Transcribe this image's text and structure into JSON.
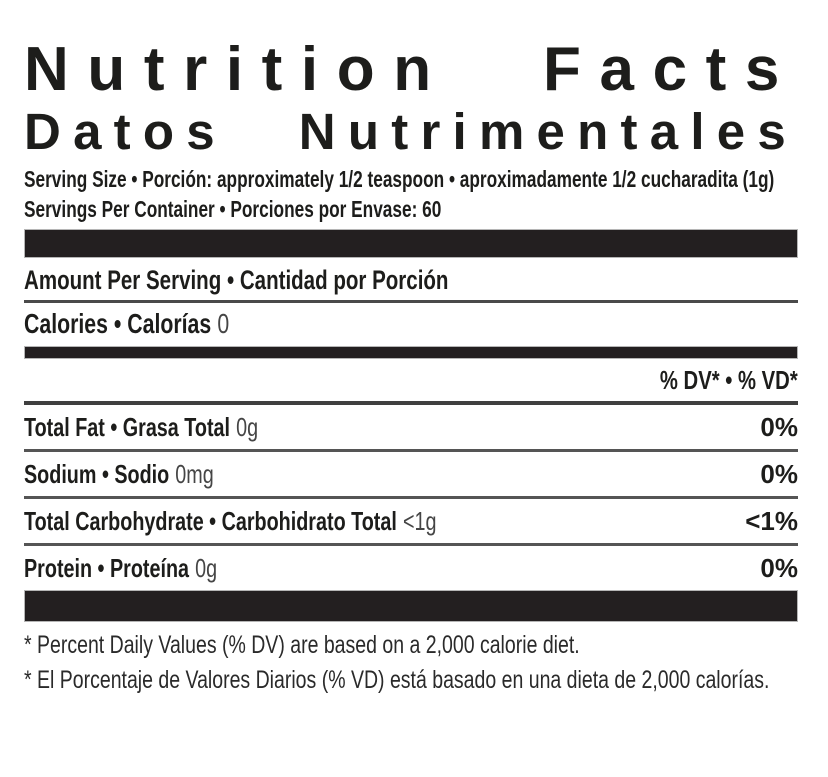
{
  "nutrition_label": {
    "title_en": "Nutrition Facts",
    "title_es": "Datos Nutrimentales",
    "serving_size_line": "Serving Size • Porción: approximately 1/2 teaspoon • aproximadamente 1/2 cucharadita (1g)",
    "servings_per_container_line": "Servings Per Container • Porciones por Envase: 60",
    "amount_per_serving_header": "Amount Per Serving • Cantidad por Porción",
    "calories_label": "Calories • Calorías",
    "calories_value": "0",
    "daily_value_header": "% DV* • % VD*",
    "nutrient_rows": [
      {
        "label": "Total Fat • Grasa Total",
        "amount": "0g",
        "daily_value": "0%"
      },
      {
        "label": "Sodium • Sodio",
        "amount": "0mg",
        "daily_value": "0%"
      },
      {
        "label": "Total Carbohydrate • Carbohidrato Total",
        "amount": "<1g",
        "daily_value": "<1%"
      },
      {
        "label": "Protein • Proteína",
        "amount": "0g",
        "daily_value": "0%"
      }
    ],
    "footnote_en": "* Percent Daily Values (% DV) are based on a 2,000 calorie diet.",
    "footnote_es": "* El Porcentaje de Valores Diarios (% VD) está basado en una dieta de 2,000 calorías.",
    "colors": {
      "text": "#1d1d1b",
      "bar": "#231f20",
      "background": "#ffffff"
    }
  }
}
